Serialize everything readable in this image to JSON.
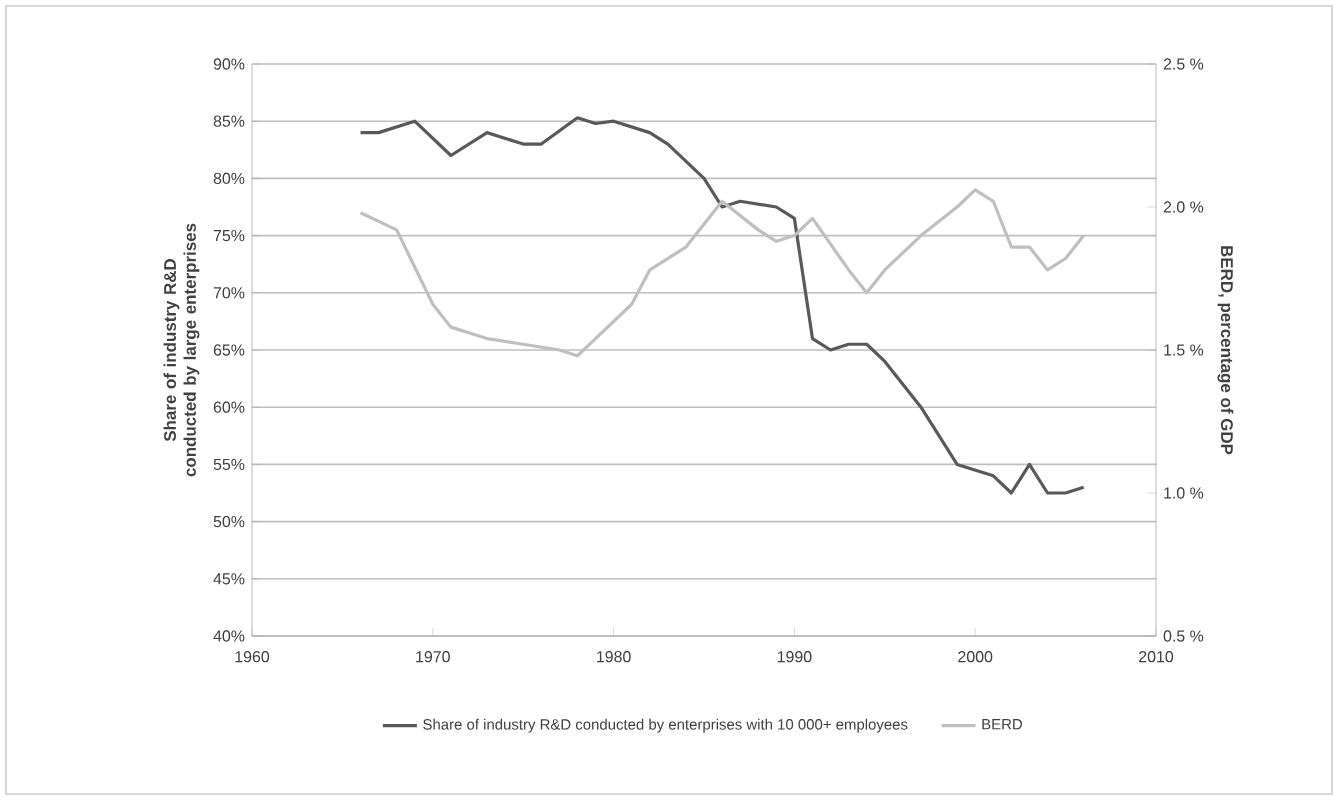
{
  "chart_data": {
    "type": "line",
    "ylabel": "Share of industry R&D conducted by large enterprises",
    "y2label": "BERD, percentage of GDP",
    "xlim": [
      1960,
      2010
    ],
    "xticks": [
      1960,
      1970,
      1980,
      1990,
      2000,
      2010
    ],
    "ylim": [
      40,
      90
    ],
    "yticks": [
      {
        "value": 40,
        "label": "40%"
      },
      {
        "value": 45,
        "label": "45%"
      },
      {
        "value": 50,
        "label": "50%"
      },
      {
        "value": 55,
        "label": "55%"
      },
      {
        "value": 60,
        "label": "60%"
      },
      {
        "value": 65,
        "label": "65%"
      },
      {
        "value": 70,
        "label": "70%"
      },
      {
        "value": 75,
        "label": "75%"
      },
      {
        "value": 80,
        "label": "80%"
      },
      {
        "value": 85,
        "label": "85%"
      },
      {
        "value": 90,
        "label": "90%"
      }
    ],
    "y2lim": [
      0.5,
      2.5
    ],
    "y2ticks": [
      {
        "value": 0.5,
        "label": "0.5 %"
      },
      {
        "value": 1.0,
        "label": "1.0 %"
      },
      {
        "value": 1.5,
        "label": "1.5 %"
      },
      {
        "value": 2.0,
        "label": "2.0 %"
      },
      {
        "value": 2.5,
        "label": "2.5 %"
      }
    ],
    "grid": "y",
    "legend": "bottom",
    "series": [
      {
        "name": "Share of industry R&D conducted by enterprises with 10 000+ employees",
        "color": "#595959",
        "x": [
          1966,
          1967,
          1969,
          1971,
          1973,
          1975,
          1976,
          1978,
          1979,
          1980,
          1982,
          1983,
          1985,
          1986,
          1987,
          1989,
          1990,
          1991,
          1992,
          1993,
          1994,
          1995,
          1997,
          1999,
          2001,
          2002,
          2003,
          2004,
          2005,
          2006
        ],
        "values": [
          84,
          84,
          85,
          82,
          84,
          83,
          83,
          85.3,
          84.8,
          85,
          84,
          83,
          80,
          77.5,
          78,
          77.5,
          76.5,
          66,
          65,
          65.5,
          65.5,
          64,
          60,
          55,
          54,
          52.5,
          55,
          52.5,
          52.5,
          53
        ]
      },
      {
        "name": "BERD",
        "color": "#bfbfbf",
        "axis": "y2",
        "x": [
          1966,
          1968,
          1970,
          1971,
          1973,
          1975,
          1977,
          1978,
          1979,
          1981,
          1982,
          1984,
          1986,
          1988,
          1989,
          1990,
          1991,
          1993,
          1994,
          1995,
          1997,
          1999,
          2000,
          2001,
          2002,
          2003,
          2004,
          2005,
          2006
        ],
        "values": [
          1.98,
          1.92,
          1.66,
          1.58,
          1.54,
          1.52,
          1.5,
          1.48,
          1.54,
          1.66,
          1.78,
          1.86,
          2.02,
          1.92,
          1.88,
          1.9,
          1.96,
          1.78,
          1.7,
          1.78,
          1.9,
          2.0,
          2.06,
          2.02,
          1.86,
          1.86,
          1.78,
          1.82,
          1.9
        ]
      }
    ]
  }
}
